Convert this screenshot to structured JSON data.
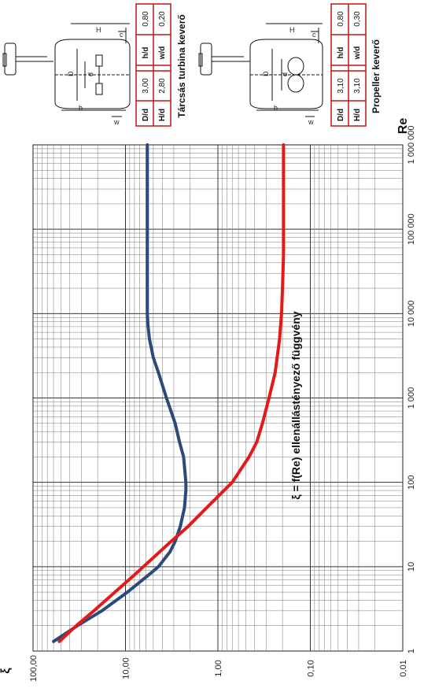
{
  "chart_data": {
    "type": "line",
    "title": "ξ = f(Re) ellenállástényező függvény",
    "xlabel": "Re",
    "ylabel": "ξ",
    "x_scale": "log",
    "y_scale": "log",
    "xlim": [
      1,
      1000000
    ],
    "ylim": [
      0.01,
      100
    ],
    "x_ticks": [
      "1",
      "10",
      "100",
      "1 000",
      "10 000",
      "100 000",
      "1 000 000"
    ],
    "y_ticks": [
      "0,01",
      "0,10",
      "1,00",
      "10,00",
      "100,00"
    ],
    "grid": true,
    "series": [
      {
        "color": "#2b4a7a",
        "x": [
          1.3,
          2,
          3,
          5,
          8,
          10,
          15,
          20,
          30,
          50,
          80,
          100,
          200,
          300,
          500,
          1000,
          2000,
          3000,
          5000,
          7000,
          10000,
          50000,
          200000,
          1000000
        ],
        "y": [
          60,
          33,
          18,
          9.5,
          5.6,
          4.4,
          3.3,
          2.9,
          2.55,
          2.3,
          2.22,
          2.22,
          2.35,
          2.6,
          2.9,
          3.6,
          4.4,
          5.0,
          5.5,
          5.7,
          5.8,
          5.8,
          5.8,
          5.8
        ]
      },
      {
        "color": "#e51919",
        "x": [
          1.3,
          2,
          3,
          5,
          8,
          10,
          20,
          30,
          50,
          100,
          200,
          300,
          500,
          1000,
          2000,
          5000,
          10000,
          20000,
          50000,
          100000,
          300000,
          1000000
        ],
        "y": [
          52,
          34,
          22,
          13,
          8,
          6.4,
          3.2,
          2.1,
          1.32,
          0.7,
          0.46,
          0.38,
          0.33,
          0.28,
          0.24,
          0.215,
          0.205,
          0.2,
          0.195,
          0.195,
          0.195,
          0.195
        ]
      }
    ]
  },
  "diagrams": [
    {
      "caption": "Tárcsás turbina keverő",
      "table": [
        [
          "D/d",
          "3,00",
          "h/d",
          "0,80"
        ],
        [
          "H/d",
          "2,80",
          "w/d",
          "0,20"
        ]
      ],
      "labels": [
        "H",
        "D",
        "d",
        "h",
        "w",
        "c"
      ]
    },
    {
      "caption": "Propeller keverő",
      "table": [
        [
          "D/d",
          "3,10",
          "h/d",
          "0,80"
        ],
        [
          "H/d",
          "3,10",
          "w/d",
          "0,30"
        ]
      ],
      "labels": [
        "H",
        "D",
        "d",
        "h",
        "w",
        "c"
      ]
    }
  ]
}
